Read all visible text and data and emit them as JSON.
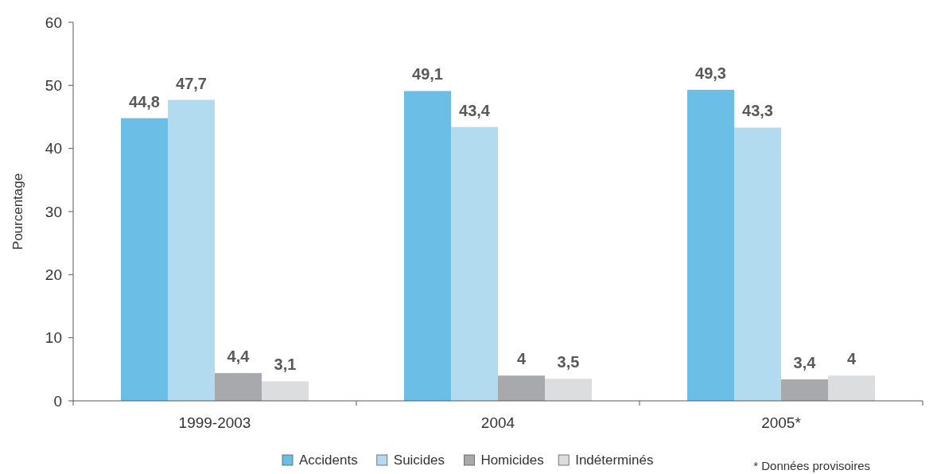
{
  "chart_data": {
    "type": "bar",
    "ylabel": "Pourcentage",
    "categories": [
      "1999-2003",
      "2004",
      "2005*"
    ],
    "series": [
      {
        "name": "Accidents",
        "color": "#6bbee6",
        "values": [
          44.8,
          49.1,
          49.3
        ],
        "value_labels": [
          "44,8",
          "49,1",
          "49,3"
        ]
      },
      {
        "name": "Suicides",
        "color": "#b3dbf0",
        "values": [
          47.7,
          43.4,
          43.3
        ],
        "value_labels": [
          "47,7",
          "43,4",
          "43,3"
        ]
      },
      {
        "name": "Homicides",
        "color": "#a7a9ac",
        "values": [
          4.4,
          4,
          3.4
        ],
        "value_labels": [
          "4,4",
          "4",
          "3,4"
        ]
      },
      {
        "name": "Indéterminés",
        "color": "#dcdddf",
        "values": [
          3.1,
          3.5,
          4
        ],
        "value_labels": [
          "3,1",
          "3,5",
          "4"
        ]
      }
    ],
    "ylim": [
      0,
      60
    ],
    "yticks": [
      0,
      10,
      20,
      30,
      40,
      50,
      60
    ],
    "legend": "bottom",
    "grid": false,
    "annotations": [
      "* Données provisoires"
    ]
  }
}
